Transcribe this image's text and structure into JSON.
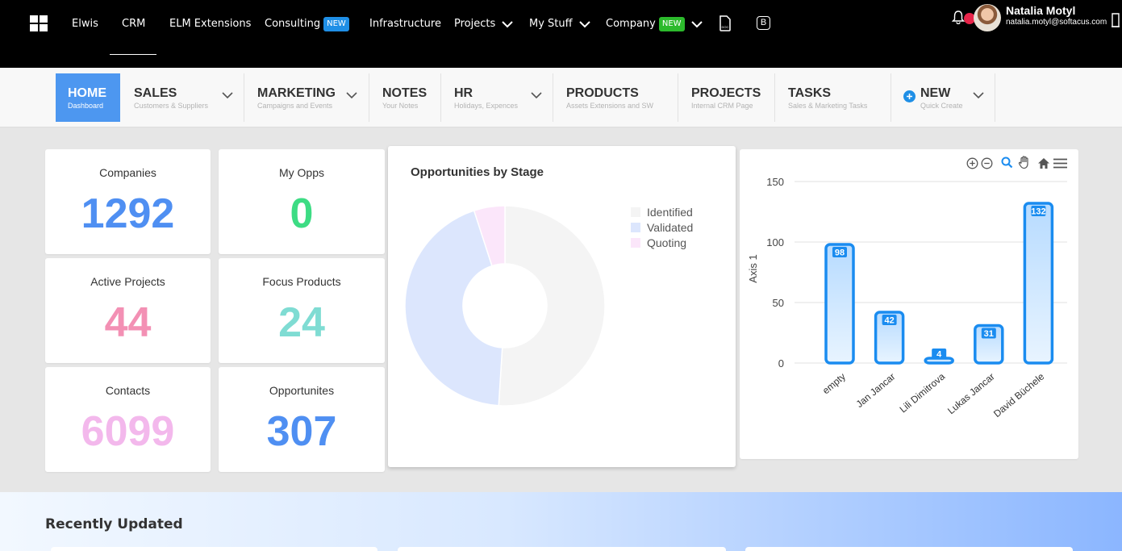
{
  "topbar": {
    "items": [
      {
        "label": "Elwis"
      },
      {
        "label": "CRM"
      },
      {
        "label": "ELM Extensions"
      },
      {
        "label": "Consulting",
        "badge": "NEW"
      },
      {
        "label": "Infrastructure"
      },
      {
        "label": "Projects"
      },
      {
        "label": "My Stuff"
      },
      {
        "label": "Company",
        "badge": "NEW"
      }
    ],
    "b_icon": "B",
    "user": {
      "name": "Natalia Motyl",
      "email": "natalia.motyl@softacus.com"
    },
    "icons": {
      "apps": "grid-icon",
      "doc": "document-icon",
      "b": "b-square-icon",
      "bell": "bell-icon",
      "logout": "door-icon"
    },
    "colors": {
      "badge_blue": "#1f8fe6",
      "badge_green": "#2cba2c"
    }
  },
  "modules": [
    {
      "title": "HOME",
      "subtitle": "Dashboard"
    },
    {
      "title": "SALES",
      "subtitle": "Customers & Suppliers"
    },
    {
      "title": "MARKETING",
      "subtitle": "Campaigns and Events"
    },
    {
      "title": "NOTES",
      "subtitle": "Your Notes"
    },
    {
      "title": "HR",
      "subtitle": "Holidays, Expences"
    },
    {
      "title": "PRODUCTS",
      "subtitle": "Assets Extensions and SW"
    },
    {
      "title": "PROJECTS",
      "subtitle": "Internal CRM Page"
    },
    {
      "title": "TASKS",
      "subtitle": "Sales & Marketing Tasks"
    },
    {
      "title": "NEW",
      "subtitle": "Quick Create"
    }
  ],
  "stats": [
    {
      "label": "Companies",
      "value": "1292",
      "color": "#4f8ff2"
    },
    {
      "label": "My Opps",
      "value": "0",
      "color": "#3ddc84"
    },
    {
      "label": "Active Projects",
      "value": "44",
      "color": "#f390b4"
    },
    {
      "label": "Focus Products",
      "value": "24",
      "color": "#7fdcd3"
    },
    {
      "label": "Contacts",
      "value": "6099",
      "color": "#f3b8ec"
    },
    {
      "label": "Opportunites",
      "value": "307",
      "color": "#4f8ff2"
    }
  ],
  "donut": {
    "title": "Opportunities by Stage",
    "legend": [
      "Identified",
      "Validated",
      "Quoting"
    ]
  },
  "chart_data": [
    {
      "type": "pie",
      "title": "Opportunities by Stage",
      "categories": [
        "Identified",
        "Validated",
        "Quoting"
      ],
      "values": [
        51,
        44,
        5
      ],
      "colors": [
        "#f4f4f4",
        "#dce6fd",
        "#fbe6fa"
      ],
      "legend": "top-right"
    },
    {
      "type": "bar",
      "categories": [
        "empty",
        "Jan Jancar",
        "Lili Dimitrova",
        "Lukas Jancar",
        "David Büchele"
      ],
      "values": [
        98,
        42,
        4,
        31,
        132
      ],
      "ylabel": "Axis 1",
      "yticks": [
        0,
        50,
        100,
        150
      ],
      "ylim": [
        0,
        150
      ],
      "grid": true,
      "colors": {
        "bar_stroke": "#1a8cf0",
        "bar_fill_top": "#b7dbff",
        "bar_fill_bottom": "#e8f4ff"
      }
    }
  ],
  "toolbar_icons": [
    "zoom-in-icon",
    "zoom-out-icon",
    "magnifier-icon",
    "pan-hand-icon",
    "home-icon",
    "menu-icon"
  ],
  "recently_updated": {
    "title": "Recently Updated"
  }
}
